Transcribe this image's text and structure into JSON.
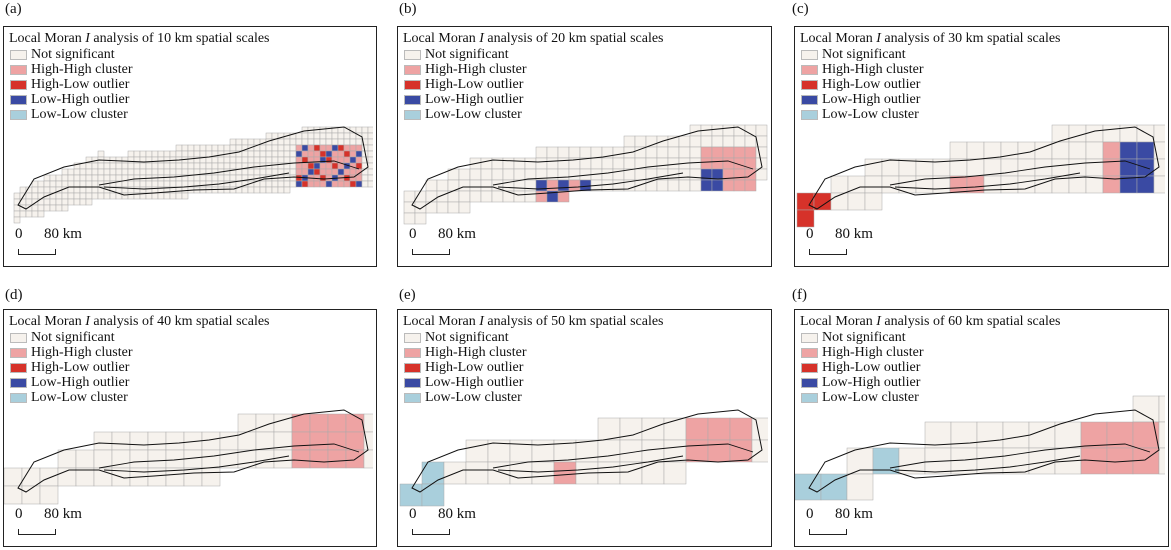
{
  "legend": {
    "items": [
      {
        "label": "Not significant",
        "color": "#f6f2ed"
      },
      {
        "label": "High-High cluster",
        "color": "#eea3a3"
      },
      {
        "label": "High-Low outlier",
        "color": "#d6322a"
      },
      {
        "label": "Low-High outlier",
        "color": "#3a4aa3"
      },
      {
        "label": "Low-Low cluster",
        "color": "#a9cfdc"
      }
    ]
  },
  "scale": {
    "zero": "0",
    "distance": "80 km"
  },
  "panels": [
    {
      "letter": "(a)",
      "title_prefix": "Local Moran ",
      "title_italic": "I",
      "title_suffix": " analysis of 10 km spatial scales"
    },
    {
      "letter": "(b)",
      "title_prefix": "Local Moran ",
      "title_italic": "I",
      "title_suffix": " analysis of 20 km spatial scales"
    },
    {
      "letter": "(c)",
      "title_prefix": "Local Moran ",
      "title_italic": "I",
      "title_suffix": " analysis of 30 km spatial scales"
    },
    {
      "letter": "(d)",
      "title_prefix": "Local Moran ",
      "title_italic": "I",
      "title_suffix": " analysis of 40 km spatial scales"
    },
    {
      "letter": "(e)",
      "title_prefix": "Local Moran ",
      "title_italic": "I",
      "title_suffix": " analysis of 50 km spatial scales"
    },
    {
      "letter": "(f)",
      "title_prefix": "Local Moran ",
      "title_italic": "I",
      "title_suffix": " analysis of 60 km spatial scales"
    }
  ]
}
